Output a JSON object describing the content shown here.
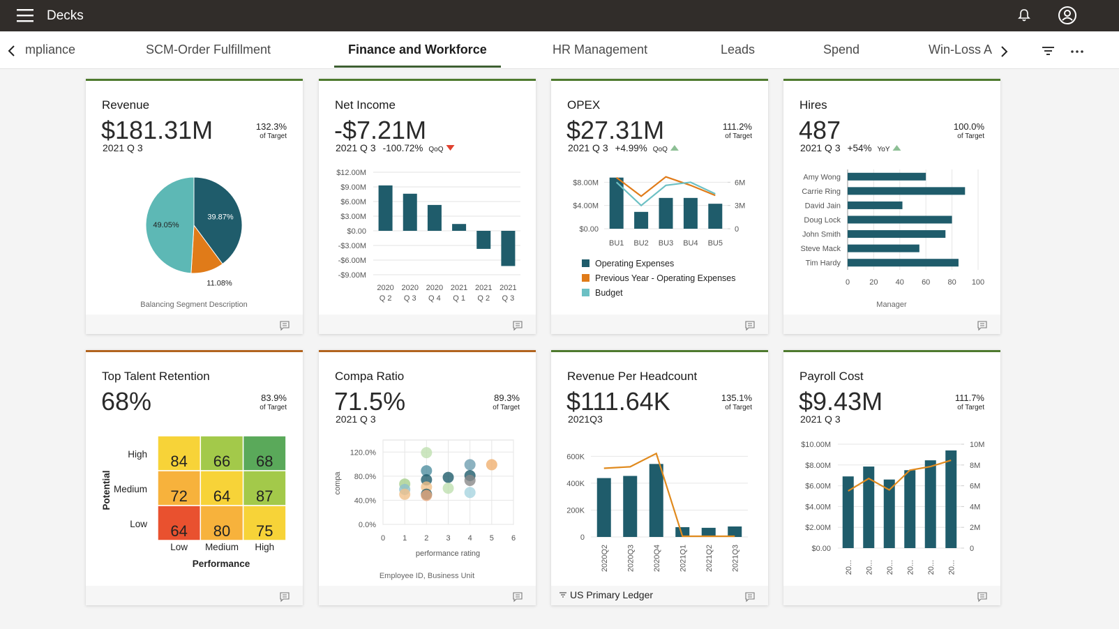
{
  "header": {
    "title": "Decks"
  },
  "tabs": {
    "items": [
      "mpliance",
      "SCM-Order Fulfillment",
      "Finance and Workforce",
      "HR Management",
      "Leads",
      "Spend",
      "Win-Loss A"
    ],
    "active": 2
  },
  "cards": [
    {
      "title": "Revenue",
      "kpi": "$181.31M",
      "period": "2021 Q 3",
      "target": "132.3%",
      "target_label": "of Target",
      "accent": "#4e7a2e",
      "chart": {
        "type": "pie",
        "values": [
          39.87,
          11.08,
          49.05
        ],
        "value_labels": [
          "39.87%",
          "11.08%",
          "49.05%"
        ],
        "colors": [
          "#1f5c6b",
          "#e07b19",
          "#5db8b5"
        ],
        "footer": "Balancing Segment Description"
      }
    },
    {
      "title": "Net Income",
      "kpi": "-$7.21M",
      "period": "2021 Q 3",
      "delta": "-100.72%",
      "delta_unit": "QoQ",
      "trend": "down",
      "accent": "#4e7a2e",
      "chart": {
        "type": "bar",
        "categories": [
          [
            "2020",
            "Q 2"
          ],
          [
            "2020",
            "Q 3"
          ],
          [
            "2020",
            "Q 4"
          ],
          [
            "2021",
            "Q 1"
          ],
          [
            "2021",
            "Q 2"
          ],
          [
            "2021",
            "Q 3"
          ]
        ],
        "values": [
          9.3,
          7.6,
          5.3,
          1.4,
          -3.7,
          -7.21
        ],
        "color": "#1f5c6b",
        "ylim": [
          -9,
          12
        ],
        "yticks": [
          {
            "value": 12,
            "label": "$12.00M"
          },
          {
            "value": 9,
            "label": "$9.00M"
          },
          {
            "value": 6,
            "label": "$6.00M"
          },
          {
            "value": 3,
            "label": "$3.00M"
          },
          {
            "value": 0,
            "label": "$0.00"
          },
          {
            "value": -3,
            "label": "-$3.00M"
          },
          {
            "value": -6,
            "label": "-$6.00M"
          },
          {
            "value": -9,
            "label": "-$9.00M"
          }
        ],
        "grid": true
      }
    },
    {
      "title": "OPEX",
      "kpi": "$27.31M",
      "period": "2021 Q 3",
      "delta": "+4.99%",
      "delta_unit": "QoQ",
      "trend": "up",
      "target": "111.2%",
      "target_label": "of Target",
      "accent": "#4e7a2e",
      "chart": {
        "type": "combo",
        "categories": [
          "BU1",
          "BU2",
          "BU3",
          "BU4",
          "BU5"
        ],
        "series": [
          {
            "name": "Operating Expenses",
            "color": "#1f5c6b",
            "kind": "bar",
            "values": [
              8.8,
              2.9,
              5.3,
              5.3,
              4.3
            ]
          },
          {
            "name": "Previous Year - Operating Expenses",
            "color": "#e07b19",
            "kind": "line",
            "axis": "y2",
            "values": [
              6.6,
              4.2,
              6.7,
              5.6,
              4.3
            ]
          },
          {
            "name": "Budget",
            "color": "#6cc0c4",
            "kind": "line",
            "axis": "y2",
            "values": [
              6.0,
              3.0,
              5.6,
              6.0,
              4.5
            ]
          }
        ],
        "ylim": [
          0,
          9.6
        ],
        "yticks": [
          {
            "value": 0,
            "label": "$0.00"
          },
          {
            "value": 4,
            "label": "$4.00M"
          },
          {
            "value": 8,
            "label": "$8.00M"
          }
        ],
        "y2lim": [
          0,
          7.2
        ],
        "y2ticks": [
          0,
          {
            "value": 3,
            "label": "3M"
          },
          {
            "value": 6,
            "label": "6M"
          }
        ],
        "grid": true,
        "legend": "bottom"
      }
    },
    {
      "title": "Hires",
      "kpi": "487",
      "period": "2021 Q 3",
      "delta": "+54%",
      "delta_unit": "YoY",
      "trend": "up",
      "target": "100.0%",
      "target_label": "of Target",
      "accent": "#4e7a2e",
      "chart": {
        "type": "hbar",
        "categories": [
          "Amy Wong",
          "Carrie Ring",
          "David Jain",
          "Doug Lock",
          "John Smith",
          "Steve Mack",
          "Tim Hardy"
        ],
        "values": [
          60,
          90,
          42,
          80,
          75,
          55,
          85
        ],
        "color": "#1f5c6b",
        "xlim": [
          0,
          100
        ],
        "xticks": [
          0,
          20,
          40,
          60,
          80,
          100
        ],
        "xlabel": "Manager",
        "grid": true
      }
    },
    {
      "title": "Top Talent Retention",
      "kpi": "68%",
      "target": "83.9%",
      "target_label": "of Target",
      "accent": "#b2641f",
      "chart": {
        "type": "heatmap",
        "rows": [
          "High",
          "Medium",
          "Low"
        ],
        "columns": [
          "Low",
          "Medium",
          "High"
        ],
        "values": [
          [
            84,
            66,
            68
          ],
          [
            72,
            64,
            87
          ],
          [
            64,
            80,
            75
          ]
        ],
        "colors": [
          [
            "#f7d338",
            "#a3c94a",
            "#5aa95a"
          ],
          [
            "#f7b23c",
            "#f7d338",
            "#a3c94a"
          ],
          [
            "#e9512f",
            "#f7b23c",
            "#f7d338"
          ]
        ],
        "ylabel": "Potential",
        "xlabel": "Performance"
      }
    },
    {
      "title": "Compa Ratio",
      "kpi": "71.5%",
      "period": "2021 Q 3",
      "target": "89.3%",
      "target_label": "of Target",
      "accent": "#b2641f",
      "chart": {
        "type": "scatter",
        "x": [
          1,
          1,
          1,
          2,
          2,
          2,
          2,
          2,
          2,
          3,
          3,
          4,
          4,
          4,
          4,
          5
        ],
        "values": [
          67,
          58,
          50,
          119,
          89,
          74,
          62,
          50,
          48,
          78,
          60,
          99,
          81,
          73,
          53,
          99
        ],
        "colors": [
          "#a8d08d",
          "#8fbfcc",
          "#f0c08a",
          "#bfe0b0",
          "#4f8ea0",
          "#1f5c6b",
          "#f0c08a",
          "#1f5c6b",
          "#e8a87c",
          "#1f5c6b",
          "#bfe0b0",
          "#6f9fb0",
          "#1f5c6b",
          "#8a8a8a",
          "#a8d4e0",
          "#f0b070"
        ],
        "xlim": [
          0,
          6
        ],
        "xticks": [
          0,
          1,
          2,
          3,
          4,
          5,
          6
        ],
        "ylim": [
          0,
          140
        ],
        "yticks": [
          {
            "value": 0,
            "label": "0.0%"
          },
          {
            "value": 40,
            "label": "40.0%"
          },
          {
            "value": 80,
            "label": "80.0%"
          },
          {
            "value": 120,
            "label": "120.0%"
          }
        ],
        "xlabel": "performance rating",
        "ylabel": "compa",
        "footer": "Employee ID, Business Unit",
        "grid": true
      }
    },
    {
      "title": "Revenue Per Headcount",
      "kpi": "$111.64K",
      "period": "2021Q3",
      "target": "135.1%",
      "target_label": "of Target",
      "accent": "#4e7a2e",
      "chart": {
        "type": "combo",
        "categories": [
          "2020Q2",
          "2020Q3",
          "2020Q4",
          "2021Q1",
          "2021Q2",
          "2021Q3"
        ],
        "series": [
          {
            "color": "#1f5c6b",
            "kind": "bar",
            "values": [
              438,
              454,
              543,
              73,
              68,
              78
            ]
          },
          {
            "color": "#e08a1e",
            "kind": "line",
            "values": [
              511,
              522,
              621,
              5,
              5,
              5
            ]
          }
        ],
        "ylim": [
          0,
          690
        ],
        "yticks": [
          0,
          {
            "value": 200,
            "label": "200K"
          },
          {
            "value": 400,
            "label": "400K"
          },
          {
            "value": 600,
            "label": "600K"
          }
        ],
        "grid": true,
        "filter": "US Primary Ledger"
      }
    },
    {
      "title": "Payroll Cost",
      "kpi": "$9.43M",
      "period": "2021 Q 3",
      "target": "111.7%",
      "target_label": "of Target",
      "accent": "#4e7a2e",
      "chart": {
        "type": "combo",
        "categories": [
          "20...",
          "20...",
          "20...",
          "20...",
          "20...",
          "20..."
        ],
        "series": [
          {
            "color": "#1f5c6b",
            "kind": "bar",
            "values": [
              6.9,
              7.85,
              6.6,
              7.5,
              8.45,
              9.4
            ]
          },
          {
            "color": "#e08a1e",
            "kind": "line",
            "axis": "y2",
            "values": [
              5.5,
              6.7,
              5.6,
              7.5,
              7.85,
              8.45
            ]
          }
        ],
        "ylim": [
          0,
          10
        ],
        "yticks": [
          {
            "value": 0,
            "label": "$0.00"
          },
          {
            "value": 2,
            "label": "$2.00M"
          },
          {
            "value": 4,
            "label": "$4.00M"
          },
          {
            "value": 6,
            "label": "$6.00M"
          },
          {
            "value": 8,
            "label": "$8.00M"
          },
          {
            "value": 10,
            "label": "$10.00M"
          }
        ],
        "y2lim": [
          0,
          10
        ],
        "y2ticks": [
          0,
          {
            "value": 2,
            "label": "2M"
          },
          {
            "value": 4,
            "label": "4M"
          },
          {
            "value": 6,
            "label": "6M"
          },
          {
            "value": 8,
            "label": "8M"
          },
          {
            "value": 10,
            "label": "10M"
          }
        ],
        "grid": true
      }
    }
  ]
}
